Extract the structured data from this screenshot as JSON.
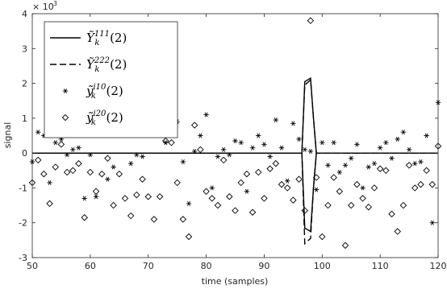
{
  "chart_data": {
    "type": "scatter",
    "xlabel": "time (samples)",
    "ylabel": "signal",
    "exponent_label": "× 10",
    "exponent_value": "-3",
    "xlim": [
      50,
      120
    ],
    "ylim": [
      -3,
      4
    ],
    "xticks": [
      "50",
      "60",
      "70",
      "80",
      "90",
      "100",
      "110",
      "120"
    ],
    "yticks": [
      "-3",
      "-2",
      "-1",
      "0",
      "1",
      "2",
      "3",
      "4"
    ],
    "y_scale_factor": 0.001,
    "grid": false,
    "legend_position": "top-left",
    "legend": [
      {
        "base": "Ỹ",
        "sub": "k",
        "sup": "111",
        "arg": "(2)",
        "style": "solid-line"
      },
      {
        "base": "Ỹ",
        "sub": "k",
        "sup": "222",
        "arg": "(2)",
        "style": "dashed-line"
      },
      {
        "base": "ỹ",
        "sub": "k",
        "sup": "i10",
        "arg": "(2)",
        "style": "asterisk"
      },
      {
        "base": "ỹ",
        "sub": "k",
        "sup": "i20",
        "arg": "(2)",
        "style": "diamond"
      }
    ],
    "series": [
      {
        "marker": "line-solid",
        "x": [
          50,
          96.5,
          97,
          98,
          98.5,
          99,
          120,
          99,
          98.5,
          98,
          97,
          96.5,
          50
        ],
        "y": [
          0,
          0,
          2.05,
          2.15,
          1.0,
          0,
          0,
          0,
          -1.0,
          -2.25,
          -2.15,
          0,
          0
        ]
      },
      {
        "marker": "line-dashed",
        "x": [
          50,
          96.5,
          97,
          98,
          98.5,
          99,
          120,
          99,
          98.5,
          98,
          97,
          96.5,
          50
        ],
        "y": [
          0,
          0,
          1.95,
          2.1,
          1.0,
          0,
          0,
          0,
          -1.0,
          -2.45,
          -2.6,
          0,
          0
        ]
      },
      {
        "marker": "asterisk",
        "x": [
          50,
          51,
          52,
          53,
          54,
          55,
          56,
          57,
          58,
          59,
          60,
          61,
          62,
          63,
          64,
          65,
          66,
          67,
          68,
          69,
          70,
          71,
          72,
          73,
          74,
          75,
          76,
          77,
          78,
          79,
          80,
          81,
          82,
          83,
          84,
          85,
          86,
          87,
          88,
          89,
          90,
          91,
          92,
          93,
          94,
          95,
          96,
          97,
          98,
          99,
          100,
          101,
          102,
          103,
          104,
          105,
          106,
          107,
          108,
          109,
          110,
          111,
          112,
          113,
          114,
          115,
          116,
          117,
          118,
          119,
          120
        ],
        "y": [
          -0.25,
          0.6,
          0.5,
          -0.85,
          0.3,
          0.4,
          -0.05,
          0.1,
          0.15,
          -1.3,
          -0.05,
          -1.25,
          0.8,
          -0.75,
          -0.4,
          0.85,
          0.9,
          -0.3,
          -0.05,
          -0.1,
          0.8,
          0.6,
          0.95,
          0.3,
          0.8,
          0.9,
          -0.25,
          -1.45,
          0.05,
          0.5,
          1.1,
          -1.0,
          -0.1,
          0.1,
          -0.05,
          0.35,
          0.3,
          -1.1,
          0.15,
          0.5,
          0.25,
          -0.1,
          0.95,
          0.15,
          -0.8,
          0.85,
          0.4,
          0.1,
          0.05,
          -1.05,
          0.3,
          -0.35,
          0.3,
          -0.55,
          -0.35,
          -0.15,
          0.25,
          -1.0,
          -0.4,
          -0.3,
          0.15,
          0.3,
          -0.15,
          0.4,
          0.6,
          0.1,
          -0.3,
          -0.25,
          0.5,
          -2.0,
          1.45
        ]
      },
      {
        "marker": "diamond",
        "x": [
          50,
          51,
          52,
          53,
          54,
          55,
          56,
          57,
          58,
          59,
          60,
          61,
          62,
          63,
          64,
          65,
          66,
          67,
          68,
          69,
          70,
          71,
          72,
          73,
          74,
          75,
          76,
          77,
          78,
          79,
          80,
          81,
          82,
          83,
          84,
          85,
          86,
          87,
          88,
          89,
          90,
          91,
          92,
          93,
          94,
          95,
          96,
          97,
          98,
          99,
          100,
          101,
          102,
          103,
          104,
          105,
          106,
          107,
          108,
          109,
          110,
          111,
          112,
          113,
          114,
          115,
          116,
          117,
          118,
          119,
          120
        ],
        "y": [
          -0.85,
          -0.2,
          -0.6,
          -1.45,
          -0.4,
          0.25,
          -0.55,
          -0.5,
          -0.3,
          -1.85,
          -0.55,
          -1.1,
          -0.6,
          -0.15,
          -1.5,
          -0.6,
          -1.3,
          -1.8,
          -1.2,
          -0.75,
          -1.25,
          -1.9,
          -1.25,
          0.35,
          0.3,
          -0.85,
          -1.9,
          -2.4,
          0.8,
          0.1,
          -1.1,
          -1.3,
          -1.5,
          -0.2,
          -1.25,
          -1.65,
          -0.85,
          -0.6,
          -1.7,
          -0.55,
          -1.3,
          -0.45,
          -0.3,
          -0.9,
          -1.0,
          -1.35,
          -0.75,
          -1.65,
          3.8,
          -0.7,
          -2.4,
          -1.5,
          -0.7,
          -1.1,
          -2.65,
          -1.5,
          -0.9,
          -1.3,
          -1.55,
          -1.0,
          -0.45,
          -0.5,
          -1.75,
          -2.25,
          -1.5,
          -0.35,
          -1.0,
          -0.9,
          -0.5,
          -0.9,
          0.2
        ]
      }
    ]
  }
}
